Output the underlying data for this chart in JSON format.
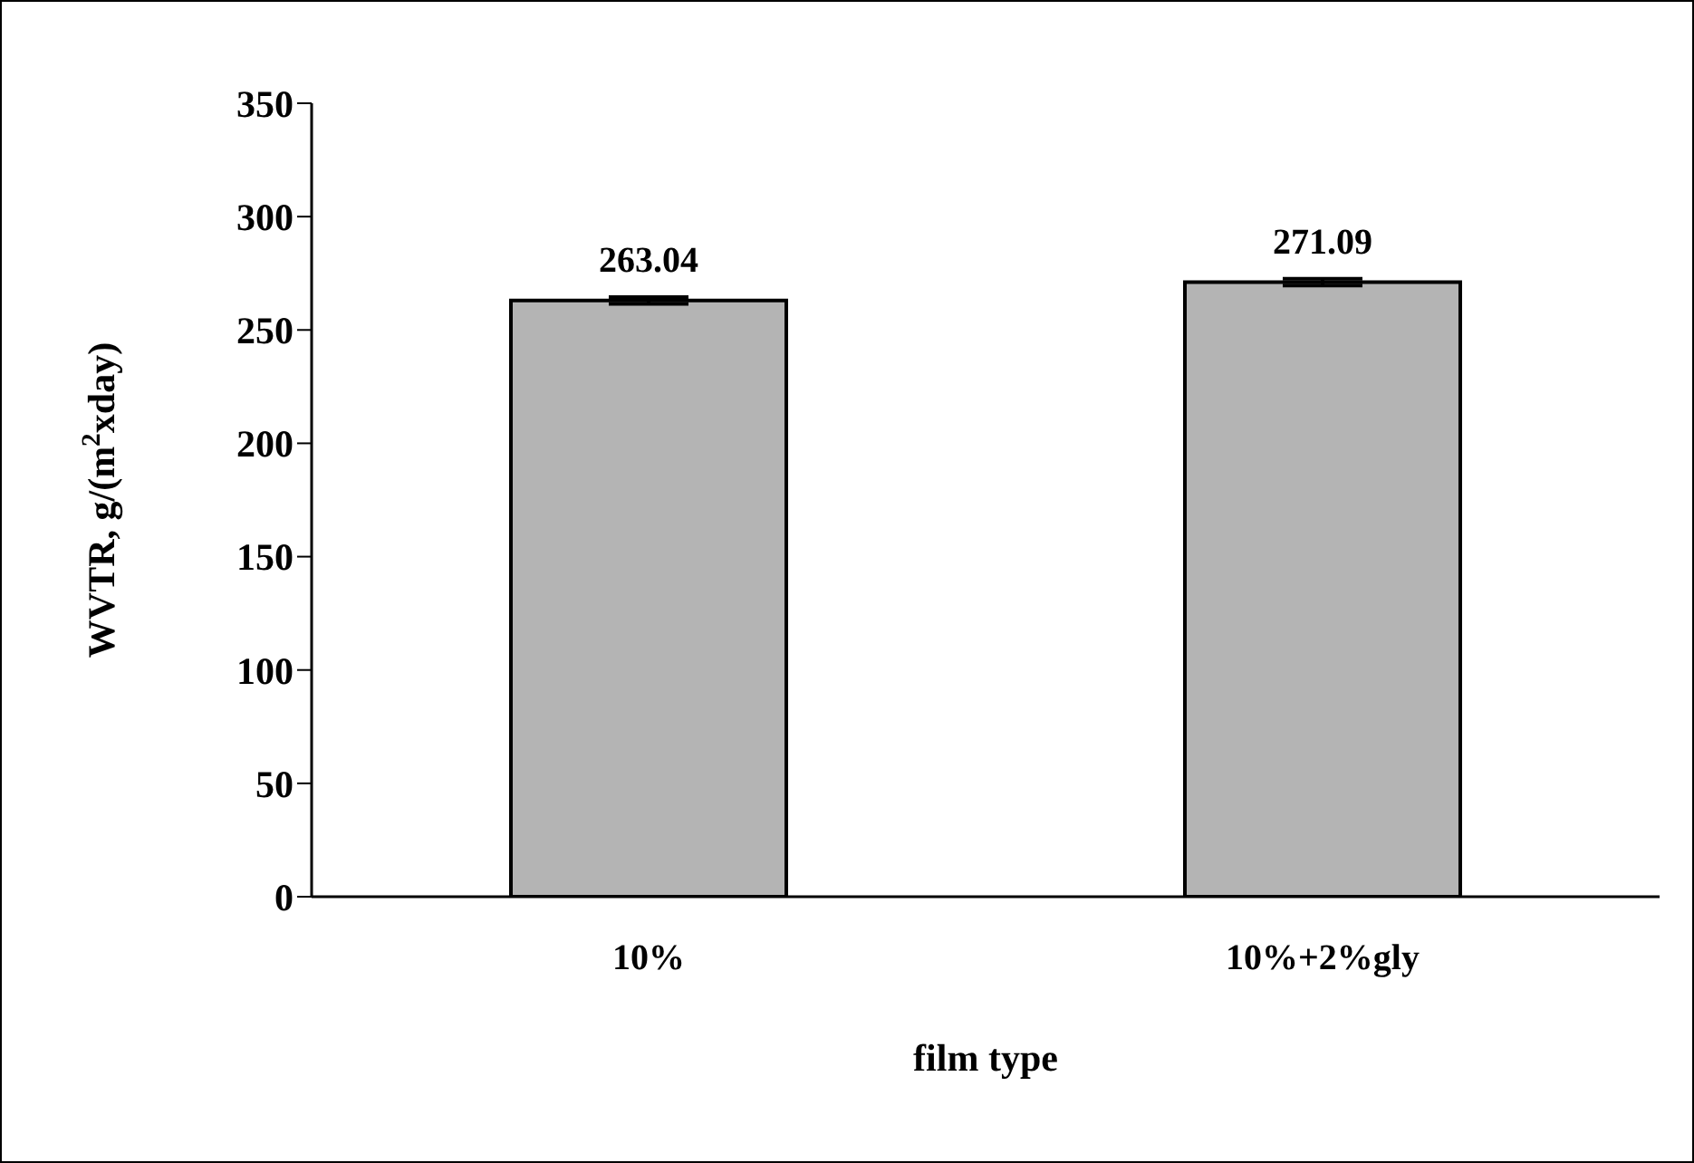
{
  "chart_data": {
    "type": "bar",
    "xlabel": "film type",
    "ylabel": "WVTR, g/(m$^{2}$xday)",
    "categories": [
      "10%",
      "10%+2%gly"
    ],
    "values": [
      263.04,
      271.09
    ],
    "errors": [
      1.5,
      1.5
    ],
    "color": "#b4b4b4",
    "ylim": [
      0,
      350
    ],
    "yticks": [
      0,
      50,
      100,
      150,
      200,
      250,
      300,
      350
    ],
    "data_labels": true,
    "grid": false,
    "legend": false
  }
}
